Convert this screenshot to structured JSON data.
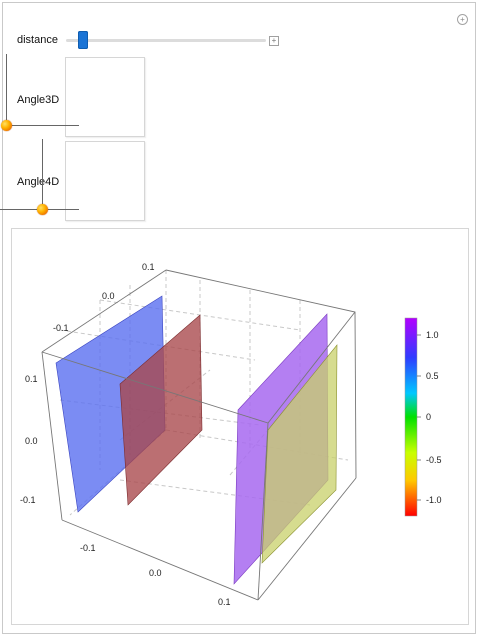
{
  "controls": {
    "distance_label": "distance",
    "angle3d_label": "Angle3D",
    "angle4d_label": "Angle4D",
    "plus_glyph": "+",
    "topright_glyph": "+"
  },
  "plot": {
    "axis_ticks_left": [
      "0.1",
      "0.0",
      "-0.1"
    ],
    "axis_ticks_top": [
      "0.1",
      "0.0",
      "-0.1"
    ],
    "axis_ticks_bottom": [
      "-0.1",
      "0.0",
      "0.1"
    ],
    "legend_ticks": [
      "1.0",
      "0.5",
      "0",
      "-0.5",
      "-1.0"
    ],
    "plane_colors": {
      "blue": "#5a6ff0",
      "red": "#a8474a",
      "purple": "#a768f0",
      "yellow": "#c8d06a"
    }
  }
}
